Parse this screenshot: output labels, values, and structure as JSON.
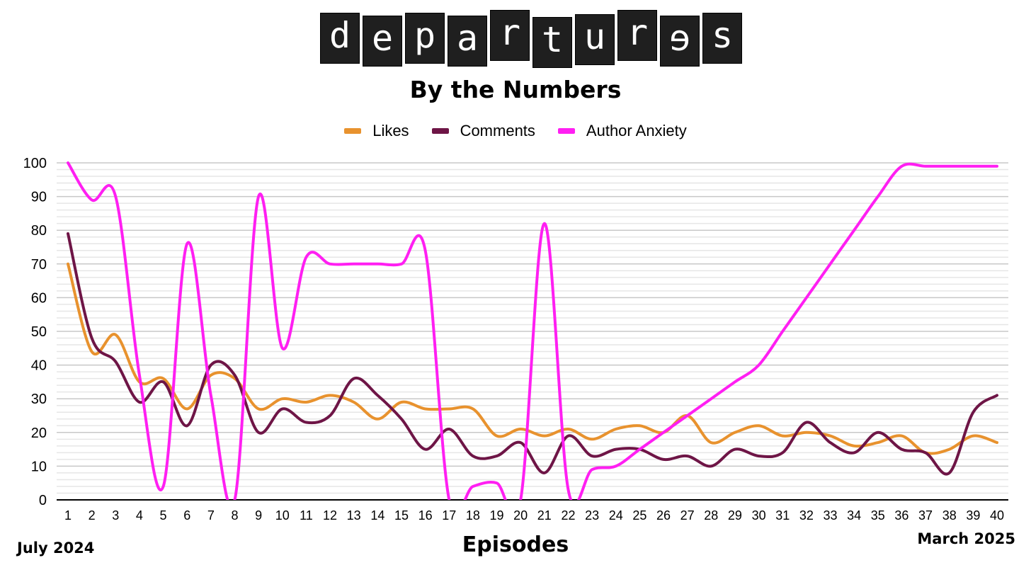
{
  "header": {
    "logo_letters": [
      "d",
      "e",
      "p",
      "a",
      "r",
      "t",
      "u",
      "r",
      "ɘ",
      "s"
    ],
    "subtitle": "By the Numbers"
  },
  "footer": {
    "start_label": "July 2024",
    "end_label": "March 2025"
  },
  "colors": {
    "likes": "#e8922e",
    "comments": "#6e1546",
    "author_anxiety": "#ff1ff2",
    "grid_major": "#c8c8c8",
    "grid_minor": "#e6e6e6",
    "logo_tile": "#1f1f1f"
  },
  "chart_data": {
    "type": "line",
    "title": "By the Numbers",
    "xlabel": "Episodes",
    "ylabel": "",
    "x": [
      1,
      2,
      3,
      4,
      5,
      6,
      7,
      8,
      9,
      10,
      11,
      12,
      13,
      14,
      15,
      16,
      17,
      18,
      19,
      20,
      21,
      22,
      23,
      24,
      25,
      26,
      27,
      28,
      29,
      30,
      31,
      32,
      33,
      34,
      35,
      36,
      37,
      38,
      39,
      40
    ],
    "ylim": [
      0,
      100
    ],
    "yticks": [
      0,
      10,
      20,
      30,
      40,
      50,
      60,
      70,
      80,
      90,
      100
    ],
    "grid": true,
    "legend_position": "top-center",
    "series": [
      {
        "name": "Likes",
        "values": [
          70,
          44,
          49,
          35,
          36,
          27,
          37,
          36,
          27,
          30,
          29,
          31,
          29,
          24,
          29,
          27,
          27,
          27,
          19,
          21,
          19,
          21,
          18,
          21,
          22,
          20,
          25,
          17,
          20,
          22,
          19,
          20,
          19,
          16,
          17,
          19,
          14,
          15,
          19,
          17
        ]
      },
      {
        "name": "Comments",
        "values": [
          79,
          48,
          41,
          29,
          35,
          22,
          40,
          37,
          20,
          27,
          23,
          25,
          36,
          31,
          24,
          15,
          21,
          13,
          13,
          17,
          8,
          19,
          13,
          15,
          15,
          12,
          13,
          10,
          15,
          13,
          14,
          23,
          17,
          14,
          20,
          15,
          14,
          8,
          26,
          31
        ]
      },
      {
        "name": "Author Anxiety",
        "values": [
          100,
          89,
          90,
          37,
          4,
          76,
          31,
          0,
          90,
          45,
          72,
          70,
          70,
          70,
          70,
          74,
          0,
          4,
          5,
          0,
          82,
          3,
          9,
          10,
          15,
          20,
          25,
          30,
          35,
          40,
          50,
          60,
          70,
          80,
          90,
          99,
          99,
          99,
          99,
          99
        ]
      }
    ]
  }
}
